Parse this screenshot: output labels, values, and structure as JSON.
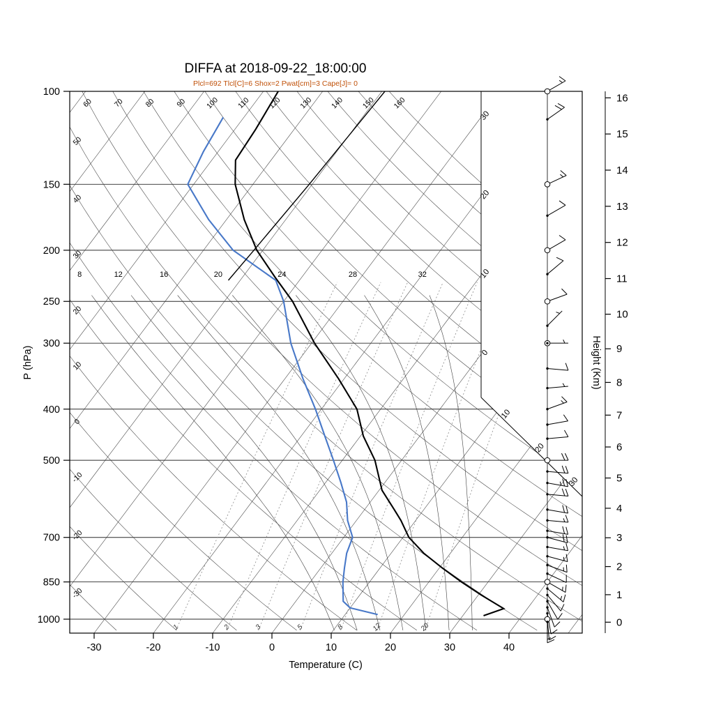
{
  "title": "DIFFA at 2018-09-22_18:00:00",
  "subtitle": "Plcl=692 Tlcl[C]=6 Shox=2 Pwat[cm]=3 Cape[J]= 0",
  "colors": {
    "temperature": "#000000",
    "dewpoint": "#4878c8",
    "parcel": "#000000",
    "subtitle": "#c05008",
    "grid": "#3d3d3d",
    "mixing": "#8a8a8a"
  },
  "axes": {
    "pressure": {
      "label": "P (hPa)",
      "ticks": [
        100,
        150,
        200,
        250,
        300,
        400,
        500,
        700,
        850,
        1000
      ],
      "scale": "log"
    },
    "temperature": {
      "label": "Temperature (C)",
      "ticks": [
        -30,
        -20,
        -10,
        0,
        10,
        20,
        30,
        40
      ]
    },
    "height": {
      "label": "Height (Km)",
      "ticks": [
        0,
        1,
        2,
        3,
        4,
        5,
        6,
        7,
        8,
        9,
        10,
        11,
        12,
        13,
        14,
        15,
        16
      ]
    }
  },
  "background": {
    "isotherm_step_C": 10,
    "dry_adiabats": [
      -30,
      -20,
      -10,
      0,
      10,
      20,
      30,
      40,
      50,
      60,
      70,
      80,
      90,
      100,
      110,
      120,
      130,
      140,
      150,
      160
    ],
    "moist_adiabats": [
      8,
      12,
      16,
      20,
      24,
      28,
      32
    ],
    "mixing_ratio_g_kg": [
      1,
      2,
      3,
      5,
      8,
      12,
      20
    ],
    "right_edge_isotherms": {
      "values": [
        -30,
        -20,
        -10,
        0,
        10,
        20,
        30
      ],
      "labels": [
        "30",
        "20",
        "10",
        "0",
        "10",
        "20",
        "30"
      ]
    }
  },
  "chart_data": {
    "type": "line",
    "diagram": "skew-t-log-p",
    "title": "DIFFA at 2018-09-22_18:00:00",
    "x_axis": {
      "label": "Temperature (C)",
      "ticks": [
        -30,
        -20,
        -10,
        0,
        10,
        20,
        30,
        40
      ]
    },
    "y_axis": {
      "label": "P (hPa)",
      "scale": "log",
      "ticks": [
        100,
        150,
        200,
        250,
        300,
        400,
        500,
        700,
        850,
        1000
      ],
      "range": [
        100,
        1050
      ]
    },
    "indices": {
      "Plcl": 692,
      "Tlcl_C": 6,
      "Shox": 2,
      "Pwat_cm": 3,
      "Cape_J": 0
    },
    "series": [
      {
        "name": "temperature",
        "color": "#000000",
        "width": 2.1,
        "points": [
          [
            985,
            33.5
          ],
          [
            955,
            36
          ],
          [
            900,
            30.5
          ],
          [
            850,
            25.5
          ],
          [
            800,
            20.5
          ],
          [
            750,
            15.5
          ],
          [
            700,
            11
          ],
          [
            650,
            7.5
          ],
          [
            620,
            5
          ],
          [
            570,
            0.5
          ],
          [
            500,
            -4.5
          ],
          [
            450,
            -9.5
          ],
          [
            400,
            -14
          ],
          [
            350,
            -21
          ],
          [
            300,
            -29.5
          ],
          [
            250,
            -38.5
          ],
          [
            225,
            -44.5
          ],
          [
            200,
            -51
          ],
          [
            175,
            -57
          ],
          [
            150,
            -63
          ],
          [
            135,
            -66
          ],
          [
            118,
            -66.5
          ],
          [
            100,
            -67.5
          ]
        ]
      },
      {
        "name": "dewpoint",
        "color": "#4878c8",
        "width": 2.1,
        "points": [
          [
            980,
            15.5
          ],
          [
            952,
            10
          ],
          [
            925,
            8
          ],
          [
            850,
            5.5
          ],
          [
            800,
            4
          ],
          [
            750,
            2.5
          ],
          [
            700,
            1.5
          ],
          [
            650,
            -1.5
          ],
          [
            600,
            -4
          ],
          [
            550,
            -7.5
          ],
          [
            500,
            -11.5
          ],
          [
            450,
            -16
          ],
          [
            400,
            -21
          ],
          [
            350,
            -27
          ],
          [
            300,
            -33.5
          ],
          [
            250,
            -40
          ],
          [
            228,
            -44
          ],
          [
            200,
            -55
          ],
          [
            175,
            -63
          ],
          [
            150,
            -71
          ],
          [
            130,
            -72.5
          ],
          [
            112,
            -73.5
          ]
        ]
      },
      {
        "name": "parcel",
        "color": "#000000",
        "width": 1.4,
        "points": [
          [
            228,
            -52
          ],
          [
            200,
            -51.5
          ],
          [
            150,
            -50.5
          ],
          [
            100,
            -49.5
          ]
        ]
      }
    ],
    "winds": [
      {
        "p": 100,
        "dir": 60,
        "spd": 15,
        "marker": "circle"
      },
      {
        "p": 113,
        "dir": 55,
        "spd": 20,
        "marker": "dot"
      },
      {
        "p": 150,
        "dir": 65,
        "spd": 15,
        "marker": "circle"
      },
      {
        "p": 172,
        "dir": 60,
        "spd": 10,
        "marker": "dot"
      },
      {
        "p": 200,
        "dir": 60,
        "spd": 10,
        "marker": "circle"
      },
      {
        "p": 222,
        "dir": 50,
        "spd": 10,
        "marker": "dot"
      },
      {
        "p": 250,
        "dir": 70,
        "spd": 10,
        "marker": "circle"
      },
      {
        "p": 278,
        "dir": 45,
        "spd": 5,
        "marker": "dot"
      },
      {
        "p": 300,
        "dir": 90,
        "spd": 5,
        "marker": "circle-dot"
      },
      {
        "p": 335,
        "dir": 95,
        "spd": 10,
        "marker": "dot"
      },
      {
        "p": 365,
        "dir": 85,
        "spd": 5,
        "marker": "dot"
      },
      {
        "p": 400,
        "dir": 70,
        "spd": 15,
        "marker": "dot"
      },
      {
        "p": 428,
        "dir": 80,
        "spd": 10,
        "marker": "dot"
      },
      {
        "p": 455,
        "dir": 85,
        "spd": 10,
        "marker": "dot"
      },
      {
        "p": 500,
        "dir": 90,
        "spd": 20,
        "marker": "circle"
      },
      {
        "p": 525,
        "dir": 95,
        "spd": 20,
        "marker": "dot"
      },
      {
        "p": 552,
        "dir": 100,
        "spd": 25,
        "marker": "dot"
      },
      {
        "p": 580,
        "dir": 95,
        "spd": 20,
        "marker": "dot"
      },
      {
        "p": 620,
        "dir": 100,
        "spd": 20,
        "marker": "dot"
      },
      {
        "p": 650,
        "dir": 95,
        "spd": 15,
        "marker": "dot"
      },
      {
        "p": 680,
        "dir": 100,
        "spd": 20,
        "marker": "dot"
      },
      {
        "p": 700,
        "dir": 105,
        "spd": 20,
        "marker": "dot"
      },
      {
        "p": 730,
        "dir": 100,
        "spd": 15,
        "marker": "dot"
      },
      {
        "p": 760,
        "dir": 105,
        "spd": 15,
        "marker": "dot"
      },
      {
        "p": 790,
        "dir": 110,
        "spd": 15,
        "marker": "dot"
      },
      {
        "p": 820,
        "dir": 115,
        "spd": 10,
        "marker": "dot"
      },
      {
        "p": 850,
        "dir": 120,
        "spd": 15,
        "marker": "circle"
      },
      {
        "p": 875,
        "dir": 130,
        "spd": 15,
        "marker": "dot"
      },
      {
        "p": 900,
        "dir": 140,
        "spd": 10,
        "marker": "dot"
      },
      {
        "p": 925,
        "dir": 150,
        "spd": 10,
        "marker": "dot"
      },
      {
        "p": 950,
        "dir": 160,
        "spd": 10,
        "marker": "dot"
      },
      {
        "p": 975,
        "dir": 170,
        "spd": 10,
        "marker": "dot"
      },
      {
        "p": 1000,
        "dir": 175,
        "spd": 10,
        "marker": "circle"
      },
      {
        "p": 1012,
        "dir": 180,
        "spd": 15,
        "marker": "dot"
      }
    ]
  }
}
